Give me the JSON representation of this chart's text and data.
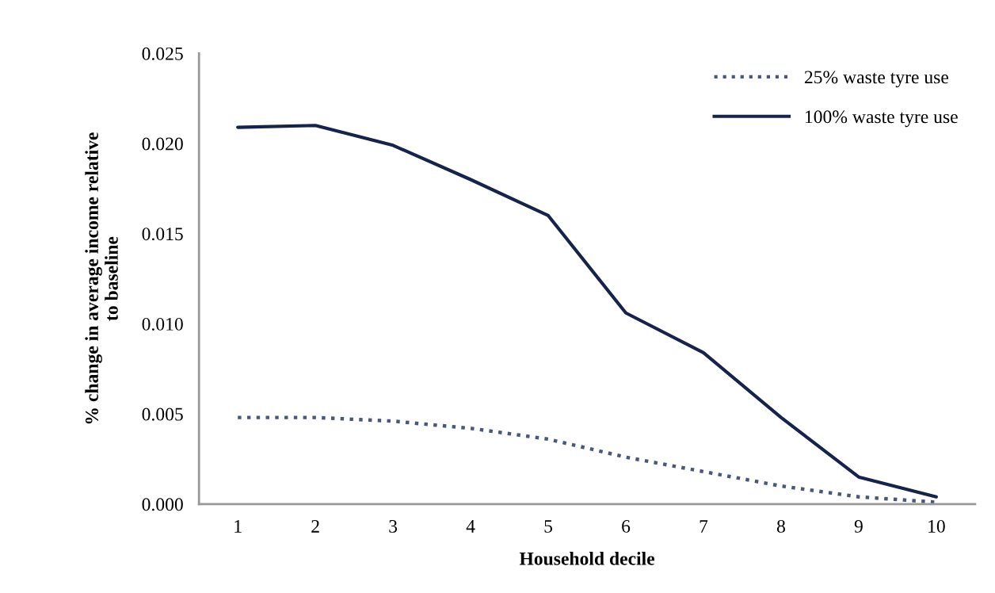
{
  "chart_data": {
    "type": "line",
    "xlabel": "Household decile",
    "ylabel": "% change in average income relative\nto baseline",
    "categories": [
      "1",
      "2",
      "3",
      "4",
      "5",
      "6",
      "7",
      "8",
      "9",
      "10"
    ],
    "series": [
      {
        "name": "25% waste tyre use",
        "color": "#4a5878",
        "line_style": "dotted",
        "values": [
          0.0048,
          0.0048,
          0.0046,
          0.0042,
          0.0036,
          0.0026,
          0.0018,
          0.001,
          0.0004,
          0.0001
        ]
      },
      {
        "name": "100% waste tyre use",
        "color": "#16234a",
        "line_style": "solid",
        "values": [
          0.0209,
          0.021,
          0.0199,
          0.018,
          0.016,
          0.0106,
          0.0084,
          0.0048,
          0.0015,
          0.0004
        ]
      }
    ],
    "ylim": [
      0,
      0.025
    ],
    "yticks": [
      {
        "value": 0,
        "label": "0.000"
      },
      {
        "value": 0.005,
        "label": "0.005"
      },
      {
        "value": 0.01,
        "label": "0.010"
      },
      {
        "value": 0.015,
        "label": "0.015"
      },
      {
        "value": 0.02,
        "label": "0.020"
      },
      {
        "value": 0.025,
        "label": "0.025"
      }
    ],
    "grid": false,
    "legend": "top right",
    "marker": "none"
  }
}
